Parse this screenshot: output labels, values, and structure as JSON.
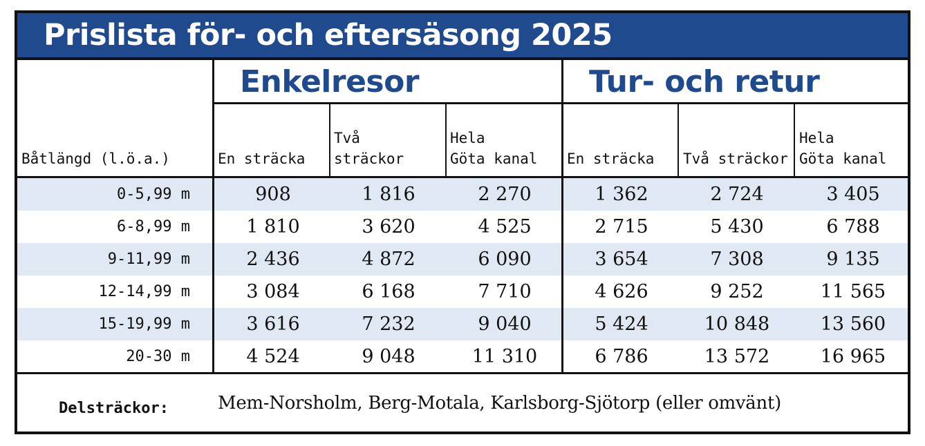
{
  "title": "Prislista för- och eftersäsong 2025",
  "groups": {
    "single": "Enkelresor",
    "return": "Tur- och retur"
  },
  "columns": {
    "boat_length": "Båtlängd (l.ö.a.)",
    "single": [
      "En sträcka",
      "Två\nsträckor",
      "Hela\nGöta kanal"
    ],
    "return": [
      "En sträcka",
      "Två sträckor",
      "Hela\nGöta kanal"
    ]
  },
  "rows": [
    {
      "length": "0-5,99 m",
      "values": [
        "908",
        "1 816",
        "2 270",
        "1 362",
        "2 724",
        "3 405"
      ]
    },
    {
      "length": "6-8,99 m",
      "values": [
        "1 810",
        "3 620",
        "4 525",
        "2 715",
        "5 430",
        "6 788"
      ]
    },
    {
      "length": "9-11,99 m",
      "values": [
        "2 436",
        "4 872",
        "6 090",
        "3 654",
        "7 308",
        "9 135"
      ]
    },
    {
      "length": "12-14,99 m",
      "values": [
        "3 084",
        "6 168",
        "7 710",
        "4 626",
        "9 252",
        "11 565"
      ]
    },
    {
      "length": "15-19,99 m",
      "values": [
        "3 616",
        "7 232",
        "9 040",
        "5 424",
        "10 848",
        "13 560"
      ]
    },
    {
      "length": "20-30 m",
      "values": [
        "4 524",
        "9 048",
        "11 310",
        "6 786",
        "13 572",
        "16 965"
      ]
    }
  ],
  "footer": {
    "label": "Delsträckor:",
    "text": "Mem-Norsholm, Berg-Motala, Karlsborg-Sjötorp (eller omvänt)"
  },
  "colors": {
    "header_blue": "#1f4a8e",
    "row_shade": "#dfe8f3",
    "border": "#111111"
  }
}
